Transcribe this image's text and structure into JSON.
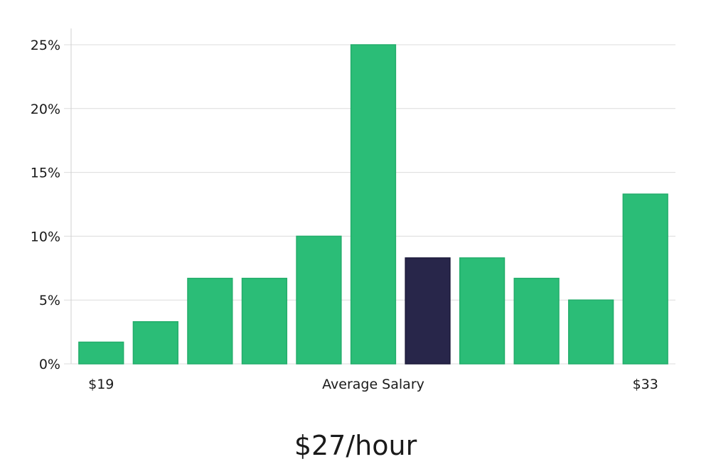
{
  "chart_data": {
    "type": "bar",
    "bar_count": 11,
    "values": [
      1.7,
      3.3,
      6.7,
      6.7,
      10.0,
      25.0,
      8.3,
      8.3,
      6.7,
      5.0,
      13.3
    ],
    "highlight_index": 6,
    "ylim": [
      0,
      25
    ],
    "y_ticks": [
      0,
      5,
      10,
      15,
      20,
      25
    ],
    "y_tick_labels": [
      "0%",
      "5%",
      "10%",
      "15%",
      "20%",
      "25%"
    ],
    "x_labels": {
      "left": "$19",
      "center": "Average Salary",
      "right": "$33"
    },
    "grid": true,
    "colors": {
      "bar": "#2bbd77",
      "bar_stroke": "#23ad6b",
      "highlight": "#28264a",
      "highlight_stroke": "#1c1a3a"
    }
  },
  "salary": {
    "value": "$27/hour"
  }
}
